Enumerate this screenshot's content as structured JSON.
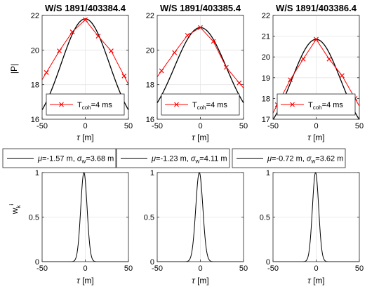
{
  "chart_data": {
    "type": "line",
    "y_axis_labels": {
      "top": "|P|",
      "bottom_main": "w",
      "bottom_sup": "i",
      "bottom_sub": "k"
    },
    "x_axis_label": {
      "symbol": "τ",
      "unit": " [m]"
    },
    "x_ticks": [
      "-50",
      "0",
      "50"
    ],
    "xlim": [
      -50,
      50
    ],
    "top_legend": {
      "label_main": "T",
      "label_sub": "coh",
      "label_rest": "=4 ms"
    },
    "bottom_ticks": [
      "0",
      "0.5",
      "1"
    ],
    "bottom_ylim": [
      0,
      1
    ],
    "colors": {
      "measured": "#ff0000",
      "fit": "#000000",
      "grid": "#e6e6e6",
      "axis": "#262626"
    },
    "panels": [
      {
        "title": "W/S 1891/403384.4",
        "ylim": [
          16,
          22
        ],
        "yticks": [
          "16",
          "18",
          "20",
          "22"
        ],
        "x": [
          -45,
          -30,
          -15,
          0,
          15,
          30,
          45
        ],
        "measured": [
          18.7,
          19.95,
          21.05,
          21.75,
          20.8,
          19.95,
          18.5
        ],
        "fit": {
          "peak": 21.8,
          "sigma": 28.0,
          "floor": 15.2
        },
        "weights": {
          "mu_value": "=-1.57 m",
          "sigma_value": "=3.68 m",
          "mu": -1.57,
          "sigma": 3.68
        }
      },
      {
        "title": "W/S 1891/403385.4",
        "ylim": [
          16,
          22
        ],
        "yticks": [
          "16",
          "18",
          "20",
          "22"
        ],
        "x": [
          -45,
          -30,
          -15,
          0,
          15,
          30,
          45
        ],
        "measured": [
          18.8,
          19.85,
          20.85,
          21.3,
          20.5,
          19.0,
          18.1
        ],
        "fit": {
          "peak": 21.3,
          "sigma": 30.0,
          "floor": 15.5
        },
        "weights": {
          "mu_value": "=-1.23 m",
          "sigma_value": "=4.11 m",
          "mu": -1.23,
          "sigma": 4.11
        }
      },
      {
        "title": "W/S 1891/403386.4",
        "ylim": [
          17,
          22
        ],
        "yticks": [
          "17",
          "18",
          "19",
          "20",
          "21",
          "22"
        ],
        "x": [
          -45,
          -30,
          -15,
          0,
          15,
          30,
          45
        ],
        "measured": [
          17.7,
          18.9,
          19.9,
          20.85,
          19.9,
          19.1,
          18.0
        ],
        "fit": {
          "peak": 20.85,
          "sigma": 28.0,
          "floor": 16.0
        },
        "weights": {
          "mu_value": "=-0.72 m",
          "sigma_value": "=3.62 m",
          "mu": -0.72,
          "sigma": 3.62
        }
      }
    ]
  }
}
